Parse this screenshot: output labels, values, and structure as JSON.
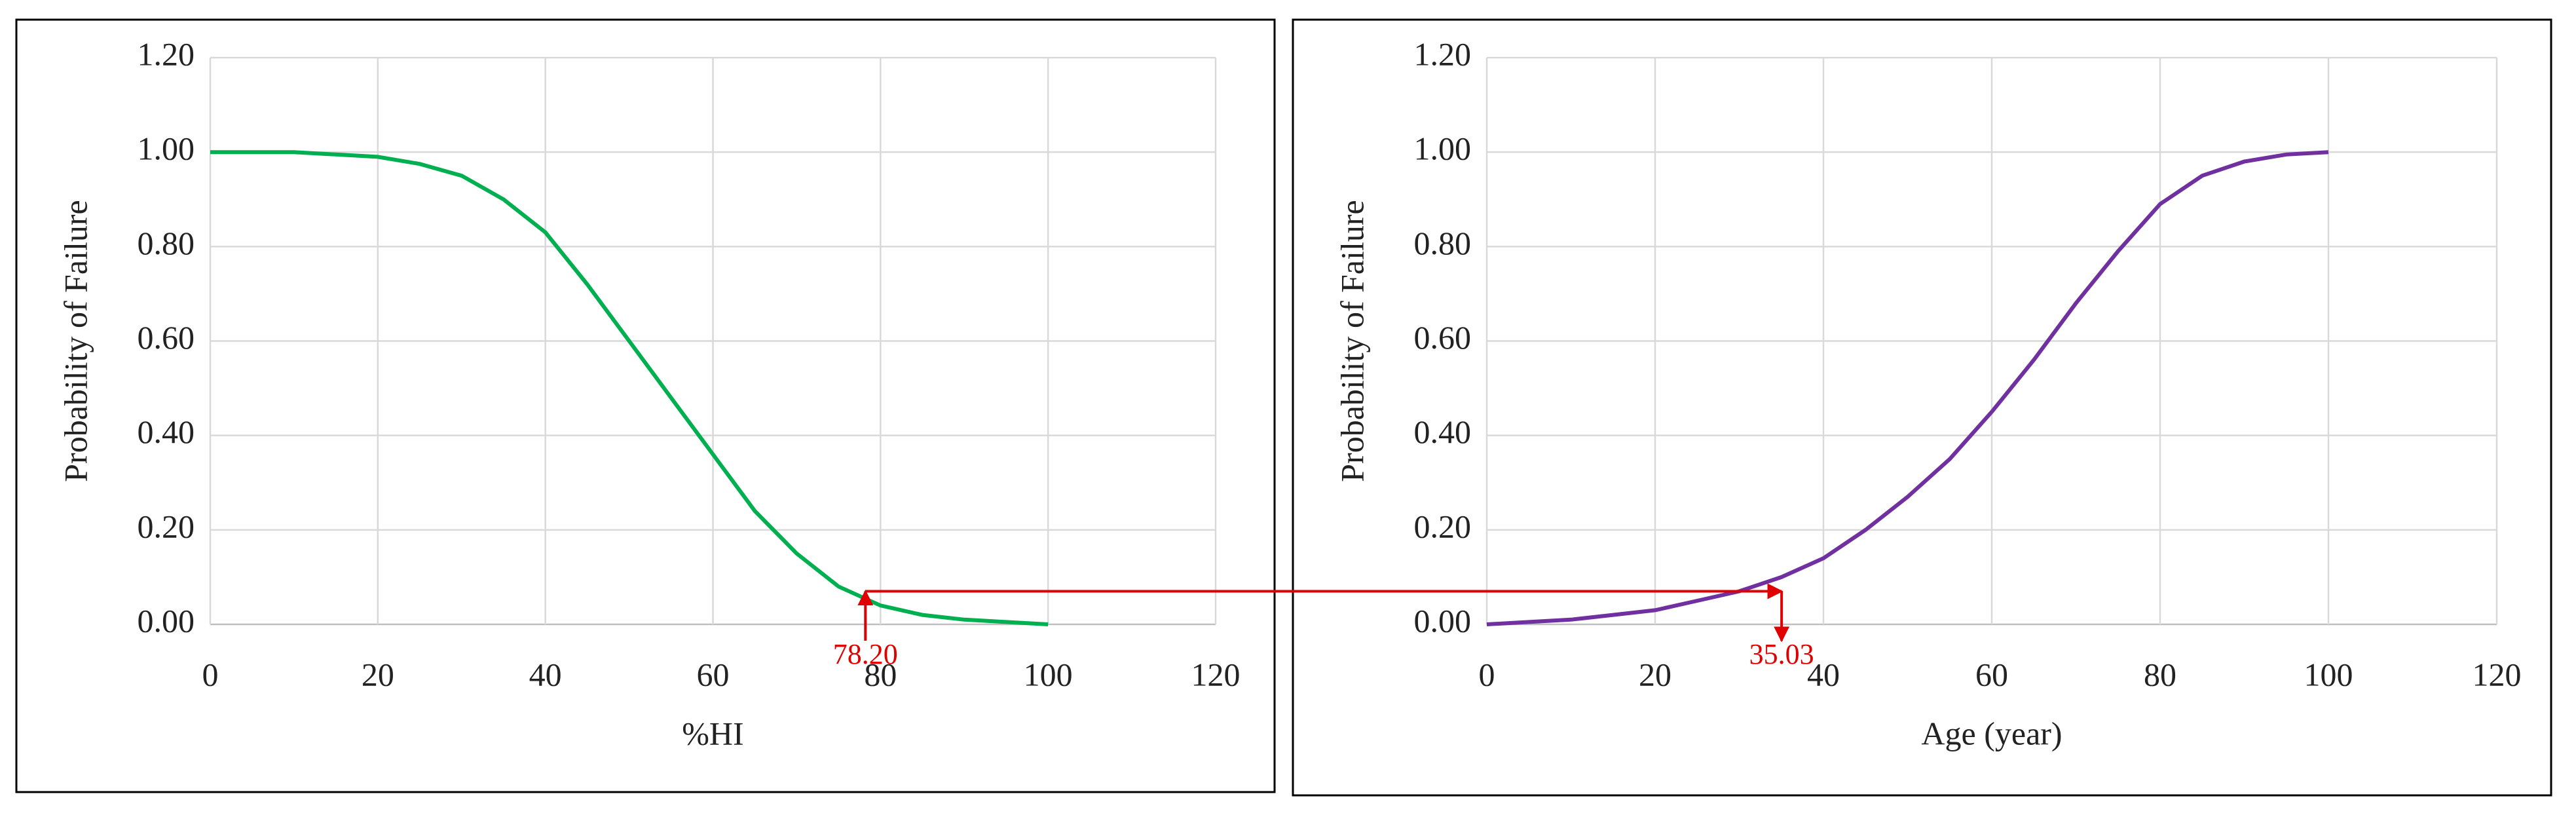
{
  "chart_data": [
    {
      "type": "line",
      "xlabel": "%HI",
      "ylabel": "Probability of Failure",
      "x": [
        0,
        5,
        10,
        15,
        20,
        25,
        30,
        35,
        40,
        45,
        50,
        55,
        60,
        65,
        70,
        75,
        80,
        85,
        90,
        95,
        100
      ],
      "series": [
        {
          "color": "#00b050",
          "values": [
            1.0,
            1.0,
            1.0,
            0.995,
            0.99,
            0.975,
            0.95,
            0.9,
            0.83,
            0.72,
            0.6,
            0.48,
            0.36,
            0.24,
            0.15,
            0.08,
            0.04,
            0.02,
            0.01,
            0.005,
            0.0
          ]
        }
      ],
      "xlim": [
        0,
        120
      ],
      "xticks": [
        0,
        20,
        40,
        60,
        80,
        100,
        120
      ],
      "ylim": [
        0,
        1.2
      ],
      "yticks": [
        {
          "value": 0,
          "label": "0.00"
        },
        {
          "value": 0.2,
          "label": "0.20"
        },
        {
          "value": 0.4,
          "label": "0.40"
        },
        {
          "value": 0.6,
          "label": "0.60"
        },
        {
          "value": 0.8,
          "label": "0.80"
        },
        {
          "value": 1,
          "label": "1.00"
        },
        {
          "value": 1.2,
          "label": "1.20"
        }
      ],
      "grid": true,
      "annotation": {
        "x": 78.2,
        "label": "78.20",
        "y": 0.07,
        "color": "#e00000"
      }
    },
    {
      "type": "line",
      "xlabel": "Age (year)",
      "ylabel": "Probability of Failure",
      "x": [
        0,
        5,
        10,
        15,
        20,
        25,
        30,
        35,
        40,
        45,
        50,
        55,
        60,
        65,
        70,
        75,
        80,
        85,
        90,
        95,
        100
      ],
      "series": [
        {
          "color": "#7030a0",
          "values": [
            0.0,
            0.005,
            0.01,
            0.02,
            0.03,
            0.05,
            0.07,
            0.1,
            0.14,
            0.2,
            0.27,
            0.35,
            0.45,
            0.56,
            0.68,
            0.79,
            0.89,
            0.95,
            0.98,
            0.995,
            1.0
          ]
        }
      ],
      "xlim": [
        0,
        120
      ],
      "xticks": [
        0,
        20,
        40,
        60,
        80,
        100,
        120
      ],
      "ylim": [
        0,
        1.2
      ],
      "yticks": [
        {
          "value": 0,
          "label": "0.00"
        },
        {
          "value": 0.2,
          "label": "0.20"
        },
        {
          "value": 0.4,
          "label": "0.40"
        },
        {
          "value": 0.6,
          "label": "0.60"
        },
        {
          "value": 0.8,
          "label": "0.80"
        },
        {
          "value": 1,
          "label": "1.00"
        },
        {
          "value": 1.2,
          "label": "1.20"
        }
      ],
      "grid": true,
      "annotation": {
        "x": 35.03,
        "label": "35.03",
        "y": 0.07,
        "color": "#e00000"
      }
    }
  ]
}
